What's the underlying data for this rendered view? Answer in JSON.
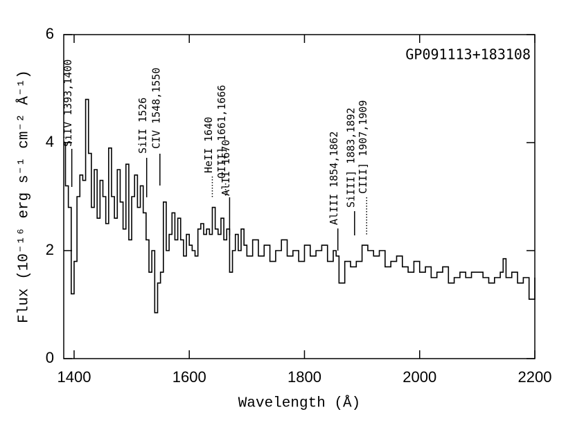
{
  "chart_data": {
    "type": "line",
    "label": "GP091113+183108",
    "x_label": "Wavelength (Å)",
    "y_label": "Flux (10⁻¹⁶ erg s⁻¹ cm⁻² Å⁻¹)",
    "xlim": [
      1382,
      2200
    ],
    "ylim": [
      0,
      6
    ],
    "xticks": [
      1400,
      1600,
      1800,
      2000,
      2200
    ],
    "yticks": [
      0,
      2,
      4,
      6
    ],
    "series": [
      {
        "color": "#000000",
        "x": [
          1382,
          1385,
          1390,
          1395,
          1400,
          1405,
          1410,
          1415,
          1420,
          1425,
          1430,
          1435,
          1440,
          1445,
          1450,
          1455,
          1460,
          1465,
          1470,
          1475,
          1480,
          1485,
          1490,
          1495,
          1500,
          1505,
          1510,
          1515,
          1520,
          1525,
          1530,
          1535,
          1540,
          1545,
          1550,
          1555,
          1560,
          1565,
          1570,
          1575,
          1580,
          1585,
          1590,
          1595,
          1600,
          1605,
          1610,
          1615,
          1620,
          1625,
          1630,
          1635,
          1640,
          1645,
          1650,
          1655,
          1660,
          1665,
          1670,
          1675,
          1680,
          1685,
          1690,
          1695,
          1700,
          1710,
          1720,
          1730,
          1740,
          1750,
          1760,
          1770,
          1780,
          1790,
          1800,
          1810,
          1820,
          1830,
          1840,
          1850,
          1855,
          1860,
          1870,
          1880,
          1890,
          1900,
          1910,
          1920,
          1930,
          1940,
          1950,
          1960,
          1970,
          1980,
          1990,
          2000,
          2010,
          2020,
          2030,
          2040,
          2050,
          2060,
          2070,
          2080,
          2090,
          2100,
          2110,
          2120,
          2130,
          2140,
          2145,
          2150,
          2160,
          2170,
          2180,
          2190,
          2200
        ],
        "values": [
          4.0,
          3.2,
          2.8,
          1.2,
          1.8,
          3.0,
          3.4,
          3.3,
          4.8,
          3.8,
          2.8,
          3.5,
          2.6,
          3.3,
          3.0,
          2.5,
          3.9,
          3.0,
          2.6,
          3.5,
          2.9,
          2.4,
          3.6,
          2.2,
          3.0,
          3.4,
          2.8,
          3.2,
          2.7,
          2.2,
          1.6,
          2.0,
          0.85,
          1.4,
          1.6,
          2.9,
          2.0,
          2.3,
          2.7,
          2.2,
          2.6,
          2.2,
          1.9,
          2.3,
          2.1,
          2.0,
          1.9,
          2.4,
          2.5,
          2.3,
          2.4,
          2.3,
          2.8,
          2.4,
          2.3,
          2.6,
          2.2,
          2.4,
          1.6,
          2.0,
          2.3,
          2.0,
          2.4,
          2.1,
          1.9,
          2.2,
          1.9,
          2.1,
          1.8,
          2.0,
          2.2,
          1.9,
          2.0,
          1.8,
          2.1,
          1.9,
          2.0,
          2.1,
          1.8,
          2.0,
          1.9,
          1.4,
          1.8,
          1.7,
          1.8,
          2.1,
          2.0,
          1.9,
          2.0,
          1.7,
          1.8,
          1.9,
          1.7,
          1.6,
          1.8,
          1.6,
          1.7,
          1.5,
          1.6,
          1.7,
          1.4,
          1.5,
          1.6,
          1.5,
          1.6,
          1.6,
          1.5,
          1.4,
          1.5,
          1.6,
          1.85,
          1.5,
          1.6,
          1.4,
          1.5,
          1.1,
          1.5
        ]
      }
    ],
    "annotations": [
      {
        "text": "SiIV 1393,1400",
        "x": 1396,
        "style": "solid"
      },
      {
        "text": "SiII 1526",
        "x": 1526,
        "style": "solid"
      },
      {
        "text": "CIV 1548,1550",
        "x": 1549,
        "style": "solid"
      },
      {
        "text": "HeII 1640",
        "x": 1640,
        "style": "dotted"
      },
      {
        "text": "OIII] 1661,1666",
        "x": 1663,
        "style": "dotted"
      },
      {
        "text": "AlII 1670",
        "x": 1670,
        "style": "solid"
      },
      {
        "text": "AlIII 1854,1862",
        "x": 1858,
        "style": "solid"
      },
      {
        "text": "SiIII] 1883,1892",
        "x": 1887,
        "style": "solid"
      },
      {
        "text": "CIII] 1907,1909",
        "x": 1908,
        "style": "dotted"
      }
    ]
  }
}
